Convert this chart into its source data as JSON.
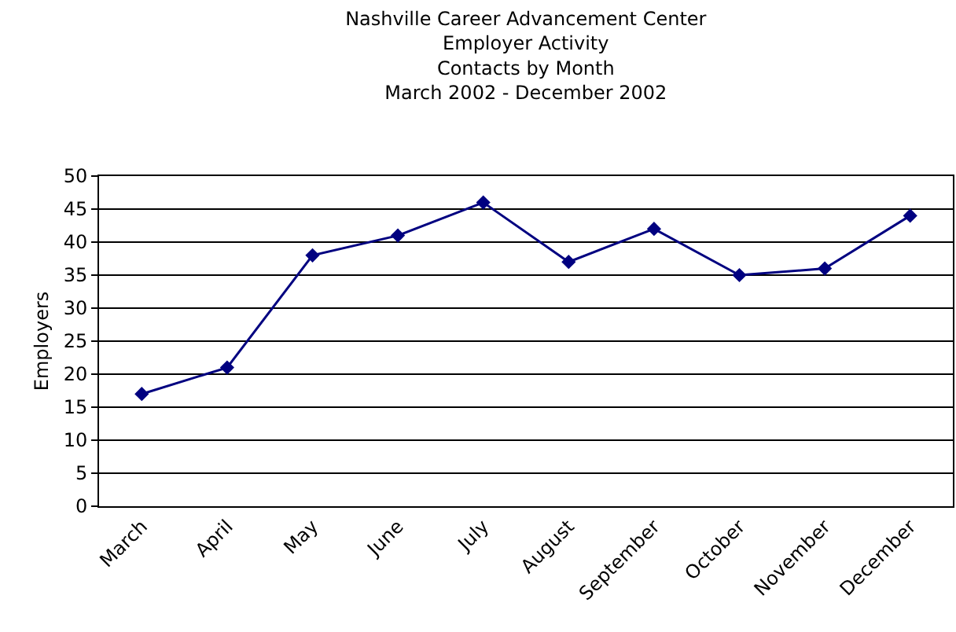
{
  "chart_data": {
    "type": "line",
    "title": "Nashville Career Advancement Center\nEmployer Activity\nContacts by Month\nMarch 2002 - December 2002",
    "ylabel": "Employers",
    "categories": [
      "March",
      "April",
      "May",
      "June",
      "July",
      "August",
      "September",
      "October",
      "November",
      "December"
    ],
    "series": [
      {
        "color": "#000080",
        "values": [
          17,
          21,
          38,
          41,
          46,
          37,
          42,
          35,
          36,
          44
        ]
      }
    ],
    "ylim": [
      0,
      50
    ],
    "yticks": [
      0,
      5,
      10,
      15,
      20,
      25,
      30,
      35,
      40,
      45,
      50
    ],
    "grid": "y",
    "marker": "diamond",
    "line_style": "solid"
  }
}
